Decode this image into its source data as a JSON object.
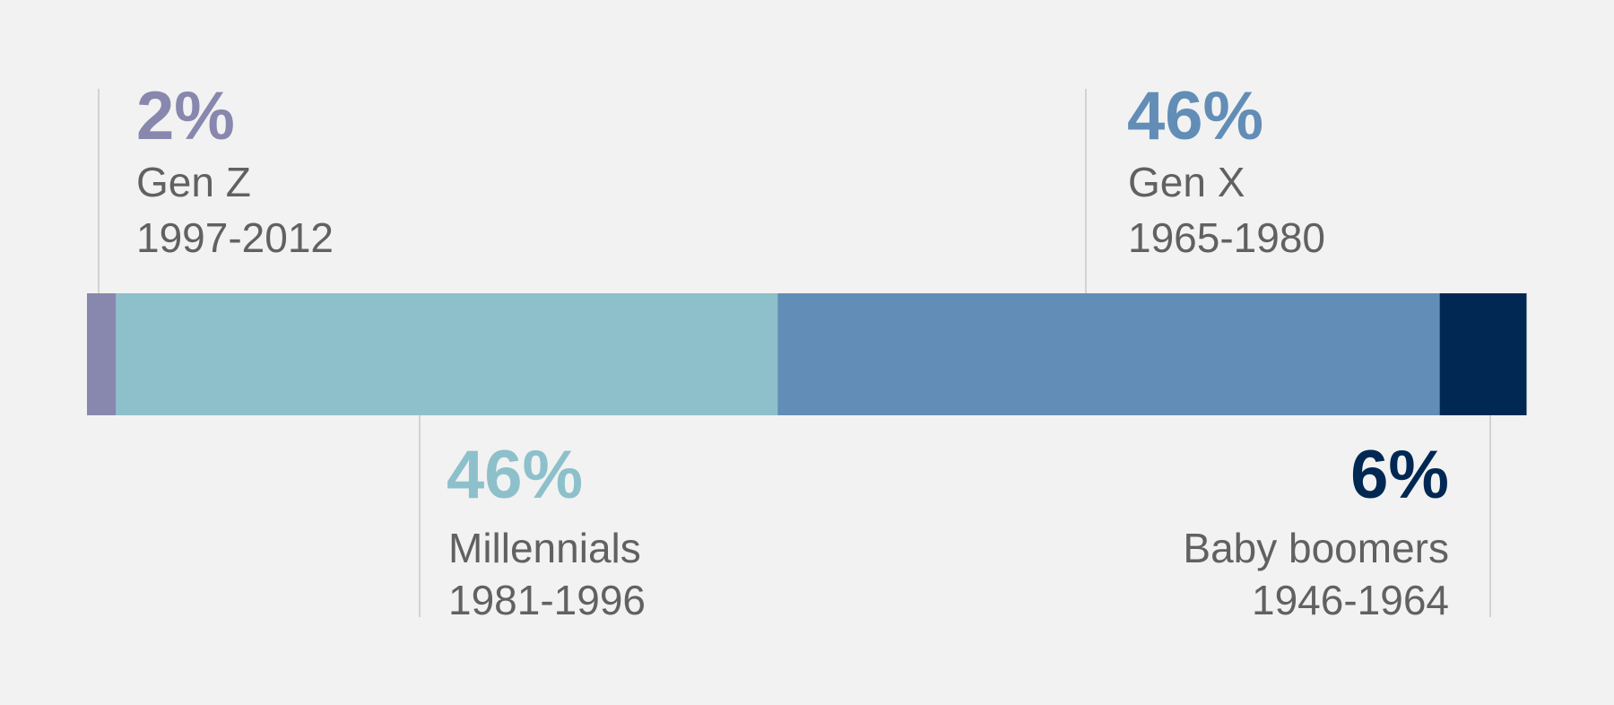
{
  "chart_data": {
    "type": "bar",
    "orientation": "horizontal-stacked",
    "categories": [
      "Gen Z",
      "Millennials",
      "Gen X",
      "Baby boomers"
    ],
    "values": [
      2,
      46,
      46,
      6
    ],
    "unit": "%",
    "xlim": [
      0,
      100
    ],
    "grid": false,
    "segments": [
      {
        "name": "Gen Z",
        "years": "1997-2012",
        "value": 2,
        "label": "2%",
        "color": "#8887ae"
      },
      {
        "name": "Millennials",
        "years": "1981-1996",
        "value": 46,
        "label": "46%",
        "color": "#8dc0ca"
      },
      {
        "name": "Gen X",
        "years": "1965-1980",
        "value": 46,
        "label": "46%",
        "color": "#628db6"
      },
      {
        "name": "Baby boomers",
        "years": "1946-1964",
        "value": 6,
        "label": "6%",
        "color": "#002853"
      }
    ]
  },
  "colors": {
    "background": "#f2f2f2",
    "text": "#616161",
    "leader_line": "#d3d3d3"
  }
}
